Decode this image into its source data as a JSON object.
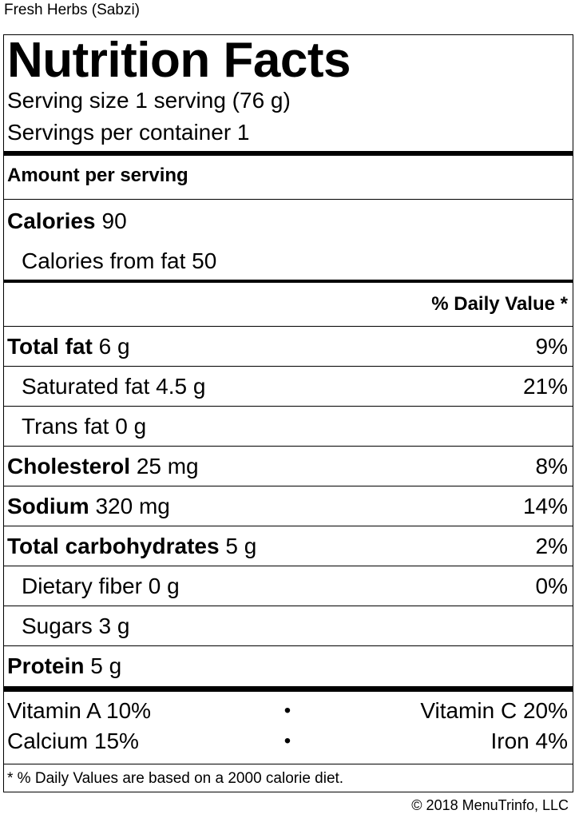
{
  "product_name": "Fresh Herbs (Sabzi)",
  "title": "Nutrition Facts",
  "serving_size": "Serving size 1 serving (76 g)",
  "servings_per_container": "Servings per container 1",
  "amount_per_serving": "Amount per serving",
  "calories": {
    "label": "Calories",
    "value": "90"
  },
  "calories_from_fat": "Calories from fat 50",
  "dv_header": "% Daily Value *",
  "nutrients": [
    {
      "label": "Total fat",
      "amount": "6 g",
      "dv": "9%"
    },
    {
      "label": "Saturated fat",
      "amount": "4.5 g",
      "dv": "21%"
    },
    {
      "label": "Trans fat",
      "amount": "0 g",
      "dv": ""
    },
    {
      "label": "Cholesterol",
      "amount": "25 mg",
      "dv": "8%"
    },
    {
      "label": "Sodium",
      "amount": "320 mg",
      "dv": "14%"
    },
    {
      "label": "Total carbohydrates",
      "amount": "5 g",
      "dv": "2%"
    },
    {
      "label": "Dietary fiber",
      "amount": "0 g",
      "dv": "0%"
    },
    {
      "label": "Sugars",
      "amount": "3 g",
      "dv": ""
    },
    {
      "label": "Protein",
      "amount": "5 g",
      "dv": ""
    }
  ],
  "vitamins": [
    {
      "left": "Vitamin A 10%",
      "right": "Vitamin C 20%"
    },
    {
      "left": "Calcium 15%",
      "right": "Iron 4%"
    }
  ],
  "separator": "•",
  "footnote": "* % Daily Values are based on a 2000 calorie diet.",
  "copyright": "© 2018 MenuTrinfo, LLC"
}
